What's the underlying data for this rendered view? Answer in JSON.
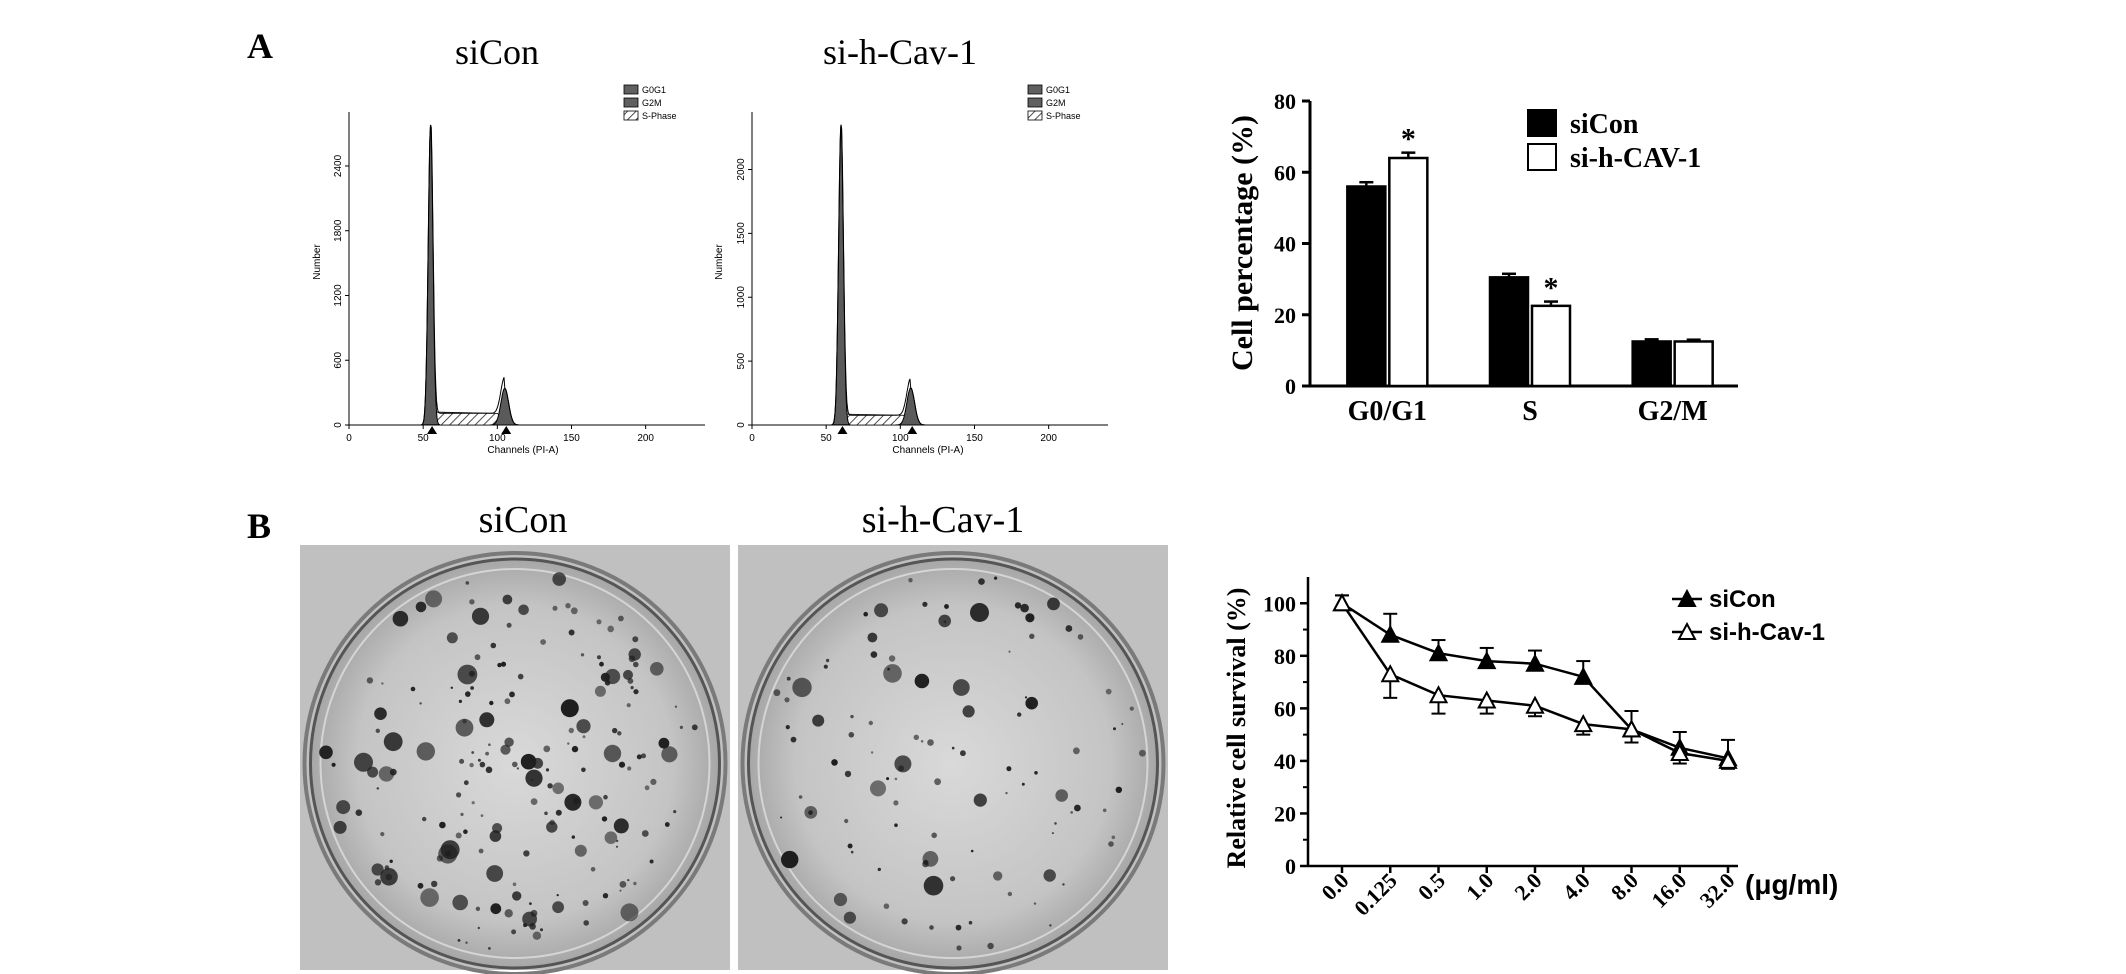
{
  "panel_labels": {
    "a": "A",
    "b": "B"
  },
  "histograms": [
    {
      "title": "siCon",
      "ylabel": "Number",
      "xlabel": "Channels (PI-A)",
      "xticks": [
        "0",
        "50",
        "100",
        "150",
        "200"
      ],
      "xtick_values": [
        0,
        50,
        100,
        150,
        200
      ],
      "ymax": 2900,
      "yticks": [
        "0",
        "600",
        "1200",
        "1800",
        "2400"
      ],
      "ytick_values": [
        0,
        600,
        1200,
        1800,
        2400
      ],
      "peak1": {
        "x": 55,
        "height": 2780
      },
      "peak2": {
        "x": 105,
        "height": 340
      },
      "s_phase_level": 120,
      "legend": [
        "G0G1",
        "G2M",
        "S-Phase"
      ]
    },
    {
      "title": "si-h-Cav-1",
      "ylabel": "Number",
      "xlabel": "Channels (PI-A)",
      "xticks": [
        "0",
        "50",
        "100",
        "150",
        "200"
      ],
      "xtick_values": [
        0,
        50,
        100,
        150,
        200
      ],
      "ymax": 2450,
      "yticks": [
        "0",
        "500",
        "1000",
        "1500",
        "2000"
      ],
      "ytick_values": [
        0,
        500,
        1000,
        1500,
        2000
      ],
      "peak1": {
        "x": 60,
        "height": 2350
      },
      "peak2": {
        "x": 107,
        "height": 290
      },
      "s_phase_level": 85,
      "legend": [
        "G0G1",
        "G2M",
        "S-Phase"
      ]
    }
  ],
  "chart_data": [
    {
      "type": "bar",
      "ylabel": "Cell percentage (%)",
      "xlabel": "",
      "categories": [
        "G0/G1",
        "S",
        "G2/M"
      ],
      "ylim": [
        0,
        80
      ],
      "yticks": [
        "0",
        "20",
        "40",
        "60",
        "80"
      ],
      "ytick_values": [
        0,
        20,
        40,
        60,
        80
      ],
      "series": [
        {
          "name": "siCon",
          "values": [
            56,
            30.5,
            12.5
          ],
          "errors": [
            1.2,
            1.0,
            0.6
          ],
          "color": "#000000"
        },
        {
          "name": "si-h-CAV-1",
          "values": [
            64,
            22.5,
            12.5
          ],
          "errors": [
            1.5,
            1.2,
            0.5
          ],
          "color": "#ffffff"
        }
      ],
      "significance": [
        "*",
        "*",
        ""
      ],
      "legend_position": "top-right"
    },
    {
      "type": "line",
      "ylabel": "Relative cell survival (%)",
      "xlabel": "",
      "unit_label": "(μg/ml)",
      "categories": [
        "0.0",
        "0.125",
        "0.5",
        "1.0",
        "2.0",
        "4.0",
        "8.0",
        "16.0",
        "32.0"
      ],
      "ylim": [
        0,
        110
      ],
      "yticks": [
        "0",
        "20",
        "40",
        "60",
        "80",
        "100"
      ],
      "ytick_values": [
        0,
        20,
        40,
        60,
        80,
        100
      ],
      "series": [
        {
          "name": "siCon",
          "values": [
            100,
            88,
            81,
            78,
            77,
            72,
            52,
            45,
            41
          ],
          "errors": [
            3,
            8,
            5,
            5,
            5,
            6,
            7,
            6,
            7
          ],
          "marker": "filled-triangle"
        },
        {
          "name": "si-h-Cav-1",
          "values": [
            100,
            73,
            65,
            63,
            61,
            54,
            52,
            43,
            40
          ],
          "errors": [
            3,
            9,
            7,
            5,
            4,
            4,
            5,
            4,
            3
          ],
          "marker": "open-triangle"
        }
      ],
      "legend_position": "top-right"
    }
  ],
  "photos": [
    {
      "title": "siCon",
      "icon": "culture-dish-photo"
    },
    {
      "title": "si-h-Cav-1",
      "icon": "culture-dish-photo"
    }
  ]
}
